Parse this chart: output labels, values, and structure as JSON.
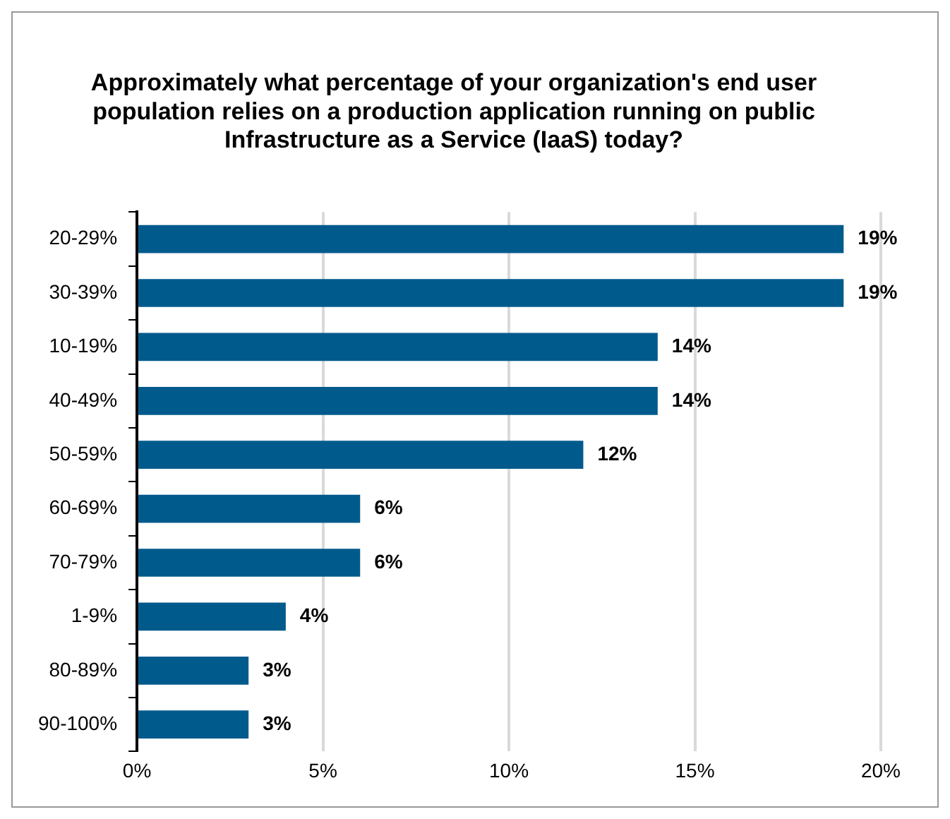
{
  "chart_data": {
    "type": "bar",
    "orientation": "horizontal",
    "title": "Approximately what percentage of your organization's end user population relies on a production application running on public Infrastructure as a Service (IaaS) today?",
    "categories": [
      "20-29%",
      "30-39%",
      "10-19%",
      "40-49%",
      "50-59%",
      "60-69%",
      "70-79%",
      "1-9%",
      "80-89%",
      "90-100%"
    ],
    "values": [
      19,
      19,
      14,
      14,
      12,
      6,
      6,
      4,
      3,
      3
    ],
    "value_labels": [
      "19%",
      "19%",
      "14%",
      "14%",
      "12%",
      "6%",
      "6%",
      "4%",
      "3%",
      "3%"
    ],
    "color": "#005a8c",
    "xlim": [
      0,
      20
    ],
    "xticks": [
      {
        "value": 0,
        "label": "0%"
      },
      {
        "value": 5,
        "label": "5%"
      },
      {
        "value": 10,
        "label": "10%"
      },
      {
        "value": 15,
        "label": "15%"
      },
      {
        "value": 20,
        "label": "20%"
      }
    ],
    "grid": "x",
    "legend": false
  }
}
